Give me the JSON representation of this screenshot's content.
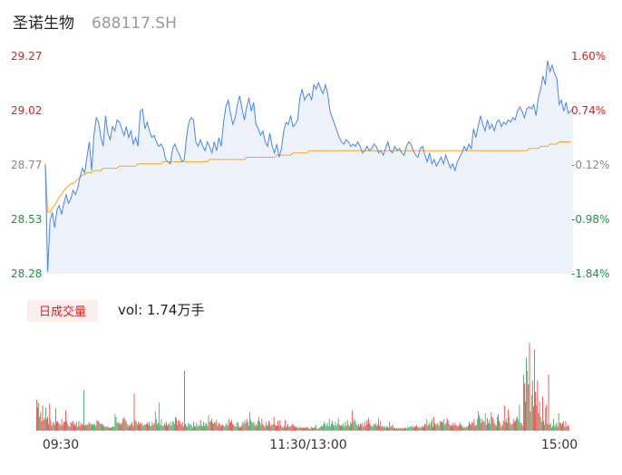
{
  "header": {
    "name": "圣诺生物",
    "code": "688117.SH"
  },
  "colors": {
    "price_line": "#4a86e8",
    "avg_line": "#f5a623",
    "area_fill": "#eef3fb",
    "up": "#e02020",
    "down": "#1a9641",
    "neutral": "#888888"
  },
  "volume_panel": {
    "badge_label": "日成交量",
    "vol_label": "vol: 1.74万手"
  },
  "chart_data": [
    {
      "type": "line",
      "ylim": [
        28.28,
        29.27
      ],
      "price_ticks": [
        "29.27",
        "29.02",
        "28.77",
        "28.53",
        "28.28"
      ],
      "pct_ticks": [
        "1.60%",
        "0.74%",
        "-0.12%",
        "-0.98%",
        "-1.84%"
      ],
      "x_ticks": [
        "09:30",
        "11:30/13:00",
        "15:00"
      ],
      "series": [
        {
          "kind": "price",
          "values": [
            28.78,
            28.29,
            28.52,
            28.56,
            28.49,
            28.57,
            28.59,
            28.55,
            28.6,
            28.64,
            28.6,
            28.62,
            28.66,
            28.64,
            28.67,
            28.72,
            28.76,
            28.74,
            28.81,
            28.88,
            28.75,
            28.91,
            28.99,
            28.97,
            28.9,
            28.86,
            29.0,
            28.92,
            28.89,
            28.95,
            28.93,
            28.98,
            28.97,
            28.94,
            28.91,
            28.95,
            28.9,
            28.93,
            28.87,
            28.9,
            28.86,
            29.02,
            29.03,
            28.94,
            28.97,
            28.93,
            28.9,
            28.91,
            28.88,
            28.86,
            28.87,
            28.85,
            28.8,
            28.79,
            28.78,
            28.85,
            28.87,
            28.84,
            28.82,
            28.79,
            28.8,
            28.9,
            28.97,
            28.99,
            28.98,
            28.88,
            28.86,
            28.89,
            28.86,
            28.84,
            28.88,
            28.86,
            28.83,
            28.88,
            28.84,
            28.9,
            28.86,
            28.97,
            29.04,
            29.07,
            29.01,
            28.96,
            28.99,
            29.05,
            29.09,
            29.03,
            28.98,
            29.04,
            29.08,
            29.02,
            29.06,
            28.96,
            28.94,
            28.91,
            28.93,
            28.88,
            28.86,
            28.92,
            28.86,
            28.83,
            28.87,
            28.81,
            28.85,
            28.93,
            28.97,
            28.96,
            29.0,
            28.95,
            28.96,
            28.98,
            29.08,
            29.12,
            29.07,
            29.09,
            29.1,
            29.07,
            29.14,
            29.12,
            29.15,
            29.12,
            29.1,
            29.14,
            29.1,
            29.02,
            28.99,
            28.96,
            28.93,
            28.9,
            28.88,
            28.87,
            28.89,
            28.88,
            28.86,
            28.87,
            28.86,
            28.88,
            28.86,
            28.83,
            28.84,
            28.86,
            28.84,
            28.85,
            28.87,
            28.86,
            28.83,
            28.84,
            28.82,
            28.85,
            28.88,
            28.84,
            28.83,
            28.86,
            28.84,
            28.85,
            28.83,
            28.82,
            28.86,
            28.88,
            28.87,
            28.84,
            28.82,
            28.81,
            28.85,
            28.86,
            28.82,
            28.79,
            28.83,
            28.78,
            28.8,
            28.77,
            28.79,
            28.81,
            28.78,
            28.82,
            28.79,
            28.76,
            28.78,
            28.75,
            28.79,
            28.81,
            28.83,
            28.86,
            28.84,
            28.87,
            28.85,
            28.94,
            28.9,
            28.95,
            29.0,
            28.96,
            28.93,
            28.98,
            28.94,
            28.96,
            28.93,
            28.97,
            28.98,
            28.95,
            28.97,
            28.96,
            28.98,
            28.97,
            28.99,
            28.98,
            29.02,
            29.04,
            29.02,
            28.99,
            29.03,
            29.04,
            29.03,
            29.05,
            29.0,
            29.08,
            29.12,
            29.18,
            29.14,
            29.25,
            29.2,
            29.23,
            29.19,
            29.17,
            29.05,
            29.07,
            29.02,
            29.06,
            29.01,
            29.02,
            29.03
          ]
        },
        {
          "kind": "average",
          "values": [
            28.77,
            28.56,
            28.56,
            28.58,
            28.59,
            28.61,
            28.63,
            28.64,
            28.66,
            28.67,
            28.68,
            28.69,
            28.69,
            28.7,
            28.71,
            28.72,
            28.73,
            28.73,
            28.74,
            28.74,
            28.74,
            28.75,
            28.75,
            28.75,
            28.75,
            28.76,
            28.76,
            28.76,
            28.76,
            28.76,
            28.76,
            28.76,
            28.77,
            28.77,
            28.77,
            28.77,
            28.77,
            28.77,
            28.77,
            28.77,
            28.78,
            28.78,
            28.78,
            28.78,
            28.78,
            28.78,
            28.78,
            28.78,
            28.78,
            28.78,
            28.78,
            28.79,
            28.79,
            28.79,
            28.79,
            28.79,
            28.79,
            28.79,
            28.79,
            28.79,
            28.79,
            28.79,
            28.79,
            28.79,
            28.79,
            28.79,
            28.79,
            28.79,
            28.79,
            28.79,
            28.79,
            28.8,
            28.8,
            28.8,
            28.8,
            28.8,
            28.8,
            28.8,
            28.8,
            28.8,
            28.8,
            28.8,
            28.8,
            28.8,
            28.8,
            28.8,
            28.8,
            28.81,
            28.81,
            28.81,
            28.81,
            28.81,
            28.81,
            28.81,
            28.81,
            28.81,
            28.81,
            28.81,
            28.81,
            28.81,
            28.82,
            28.82,
            28.82,
            28.82,
            28.82,
            28.82,
            28.82,
            28.83,
            28.83,
            28.83,
            28.83,
            28.83,
            28.83,
            28.83,
            28.84,
            28.84,
            28.84,
            28.84,
            28.84,
            28.84,
            28.84,
            28.84,
            28.84,
            28.84,
            28.84,
            28.84,
            28.84,
            28.84,
            28.84,
            28.84,
            28.84,
            28.84,
            28.84,
            28.84,
            28.84,
            28.84,
            28.84,
            28.84,
            28.84,
            28.84,
            28.84,
            28.84,
            28.84,
            28.84,
            28.84,
            28.84,
            28.84,
            28.84,
            28.84,
            28.84,
            28.84,
            28.84,
            28.84,
            28.84,
            28.84,
            28.84,
            28.84,
            28.84,
            28.84,
            28.84,
            28.84,
            28.84,
            28.84,
            28.84,
            28.84,
            28.84,
            28.84,
            28.84,
            28.84,
            28.84,
            28.84,
            28.84,
            28.84,
            28.84,
            28.84,
            28.84,
            28.84,
            28.84,
            28.84,
            28.84,
            28.84,
            28.84,
            28.84,
            28.84,
            28.84,
            28.84,
            28.84,
            28.84,
            28.84,
            28.84,
            28.84,
            28.84,
            28.84,
            28.84,
            28.84,
            28.84,
            28.84,
            28.84,
            28.84,
            28.84,
            28.84,
            28.84,
            28.84,
            28.84,
            28.84,
            28.84,
            28.84,
            28.84,
            28.84,
            28.85,
            28.85,
            28.85,
            28.85,
            28.85,
            28.86,
            28.86,
            28.86,
            28.86,
            28.87,
            28.87,
            28.87,
            28.87,
            28.88,
            28.88,
            28.88,
            28.88,
            28.88,
            28.88
          ]
        }
      ]
    },
    {
      "type": "bar",
      "ylim": [
        0,
        108
      ],
      "values": [
        32,
        24,
        29,
        14,
        19,
        10,
        26,
        11,
        13,
        24,
        12,
        14,
        7,
        28,
        11,
        5,
        8,
        9,
        6,
        23,
        9,
        10,
        8,
        7,
        5,
        12,
        6,
        9,
        9,
        21,
        10,
        7,
        5,
        4,
        9,
        8,
        10,
        6,
        7,
        5,
        9,
        4,
        10,
        5,
        8,
        6,
        7,
        42,
        5,
        6,
        6,
        6,
        9,
        7,
        7,
        6,
        7,
        6,
        7,
        5,
        11,
        10,
        9,
        7,
        7,
        7,
        6,
        5,
        4,
        4,
        4,
        4,
        3,
        3,
        3,
        4,
        4,
        4,
        17,
        14,
        8,
        9,
        7,
        8,
        6,
        8,
        12,
        14,
        12,
        10,
        7,
        4,
        6,
        5,
        7,
        9,
        5,
        38,
        11,
        9,
        6,
        9,
        6,
        8,
        7,
        8,
        5,
        6,
        6,
        7,
        8,
        6,
        9,
        5,
        5,
        9,
        6,
        8,
        20,
        12,
        6,
        8,
        29,
        6,
        12,
        5,
        5,
        8,
        6,
        9,
        5,
        7,
        6,
        9,
        5,
        10,
        9,
        7,
        14,
        13,
        6,
        10,
        11,
        8,
        6,
        9,
        4,
        62,
        7,
        5,
        4,
        8,
        6,
        7,
        5,
        3,
        9,
        5,
        4,
        8,
        4,
        6,
        5,
        11,
        6,
        4,
        9,
        5,
        7,
        8,
        5,
        16,
        9,
        10,
        12,
        8,
        7,
        9,
        8,
        11,
        5,
        8,
        7,
        4,
        6,
        6,
        5,
        4,
        6,
        8,
        5,
        12,
        8,
        9,
        11,
        7,
        6,
        5,
        4,
        8,
        9,
        5,
        3,
        4,
        5,
        9,
        7,
        11,
        8,
        12,
        9,
        5,
        19,
        11,
        9,
        8,
        9,
        5,
        7,
        5,
        10,
        14,
        9,
        6,
        12,
        7,
        5,
        4,
        9,
        6,
        5,
        10,
        8,
        5,
        6,
        7,
        14,
        6,
        5,
        5,
        10,
        5,
        11,
        6,
        4,
        3,
        5,
        11,
        3,
        5,
        7,
        4,
        4,
        5,
        7,
        6,
        5,
        4,
        3,
        4,
        3,
        3,
        4,
        3,
        3,
        3,
        3,
        3,
        3,
        4,
        3,
        2,
        2,
        4,
        3,
        3,
        3,
        4,
        6,
        2,
        2,
        3,
        4,
        5,
        4,
        6,
        9,
        7,
        5,
        8,
        5,
        12,
        4,
        7,
        10,
        6,
        5,
        9,
        5,
        7,
        13,
        6,
        5,
        6,
        5,
        7,
        4,
        9,
        5,
        11,
        6,
        4,
        9,
        7,
        21,
        9,
        12,
        10,
        6,
        5,
        7,
        4,
        7,
        6,
        8,
        4,
        9,
        5,
        11,
        7,
        13,
        8,
        6,
        5,
        4,
        7,
        6,
        8,
        5,
        6,
        13,
        5,
        10,
        4,
        5,
        4,
        5,
        3,
        4,
        4,
        3,
        9,
        4,
        5,
        6,
        3,
        3,
        2,
        3,
        2,
        3,
        2,
        3,
        2,
        3,
        2,
        3,
        3,
        2,
        4,
        3,
        4,
        4,
        5,
        4,
        3,
        5,
        4,
        6,
        4,
        3,
        4,
        3,
        5,
        4,
        4,
        7,
        6,
        12,
        5,
        8,
        6,
        9,
        12,
        4,
        14,
        8,
        6,
        7,
        8,
        5,
        10,
        9,
        10,
        8,
        12,
        6,
        8,
        13,
        11,
        7,
        5,
        6,
        5,
        8,
        5,
        8,
        6,
        5,
        4,
        6,
        8,
        5,
        6,
        3,
        4,
        3,
        4,
        4,
        5,
        9,
        7,
        6,
        9,
        8,
        12,
        5,
        6,
        12,
        20,
        16,
        13,
        8,
        12,
        10,
        9,
        18,
        6,
        13,
        8,
        11,
        7,
        19,
        14,
        12,
        8,
        6,
        5,
        14,
        17,
        10,
        8,
        4,
        6,
        10,
        26,
        9,
        12,
        8,
        22,
        14,
        8,
        6,
        7,
        12,
        9,
        10,
        13,
        14,
        11,
        27,
        8,
        8,
        5,
        58,
        49,
        30,
        76,
        62,
        48,
        91,
        20,
        37,
        52,
        25,
        84,
        40,
        26,
        52,
        18,
        30,
        14,
        9,
        35,
        10,
        6,
        24,
        27,
        7,
        58,
        6,
        8,
        3,
        5,
        12,
        4,
        6,
        8,
        4,
        18,
        8,
        8,
        6,
        8,
        10,
        4,
        10,
        4,
        6,
        5
      ]
    }
  ]
}
